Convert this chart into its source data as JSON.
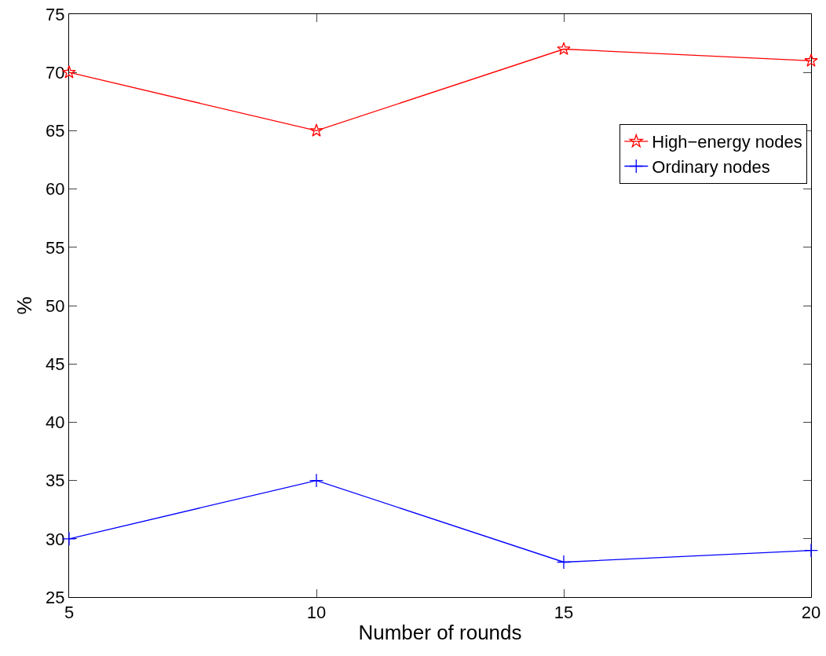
{
  "chart_data": {
    "type": "line",
    "xlabel": "Number of rounds",
    "ylabel": "%",
    "x": [
      5,
      10,
      15,
      20
    ],
    "series": [
      {
        "name": "High−energy nodes",
        "color": "#ff0000",
        "values": [
          70,
          65,
          72,
          71
        ],
        "marker": "star"
      },
      {
        "name": "Ordinary nodes",
        "color": "#0000ff",
        "values": [
          30,
          35,
          28,
          29
        ],
        "marker": "cross"
      }
    ],
    "xlim": [
      5,
      20
    ],
    "xticks": [
      5,
      10,
      15,
      20
    ],
    "ylim": [
      25,
      75
    ],
    "yticks": [
      25,
      30,
      35,
      40,
      45,
      50,
      55,
      60,
      65,
      70,
      75
    ],
    "grid": false,
    "legend": "right",
    "line_style": "solid"
  }
}
